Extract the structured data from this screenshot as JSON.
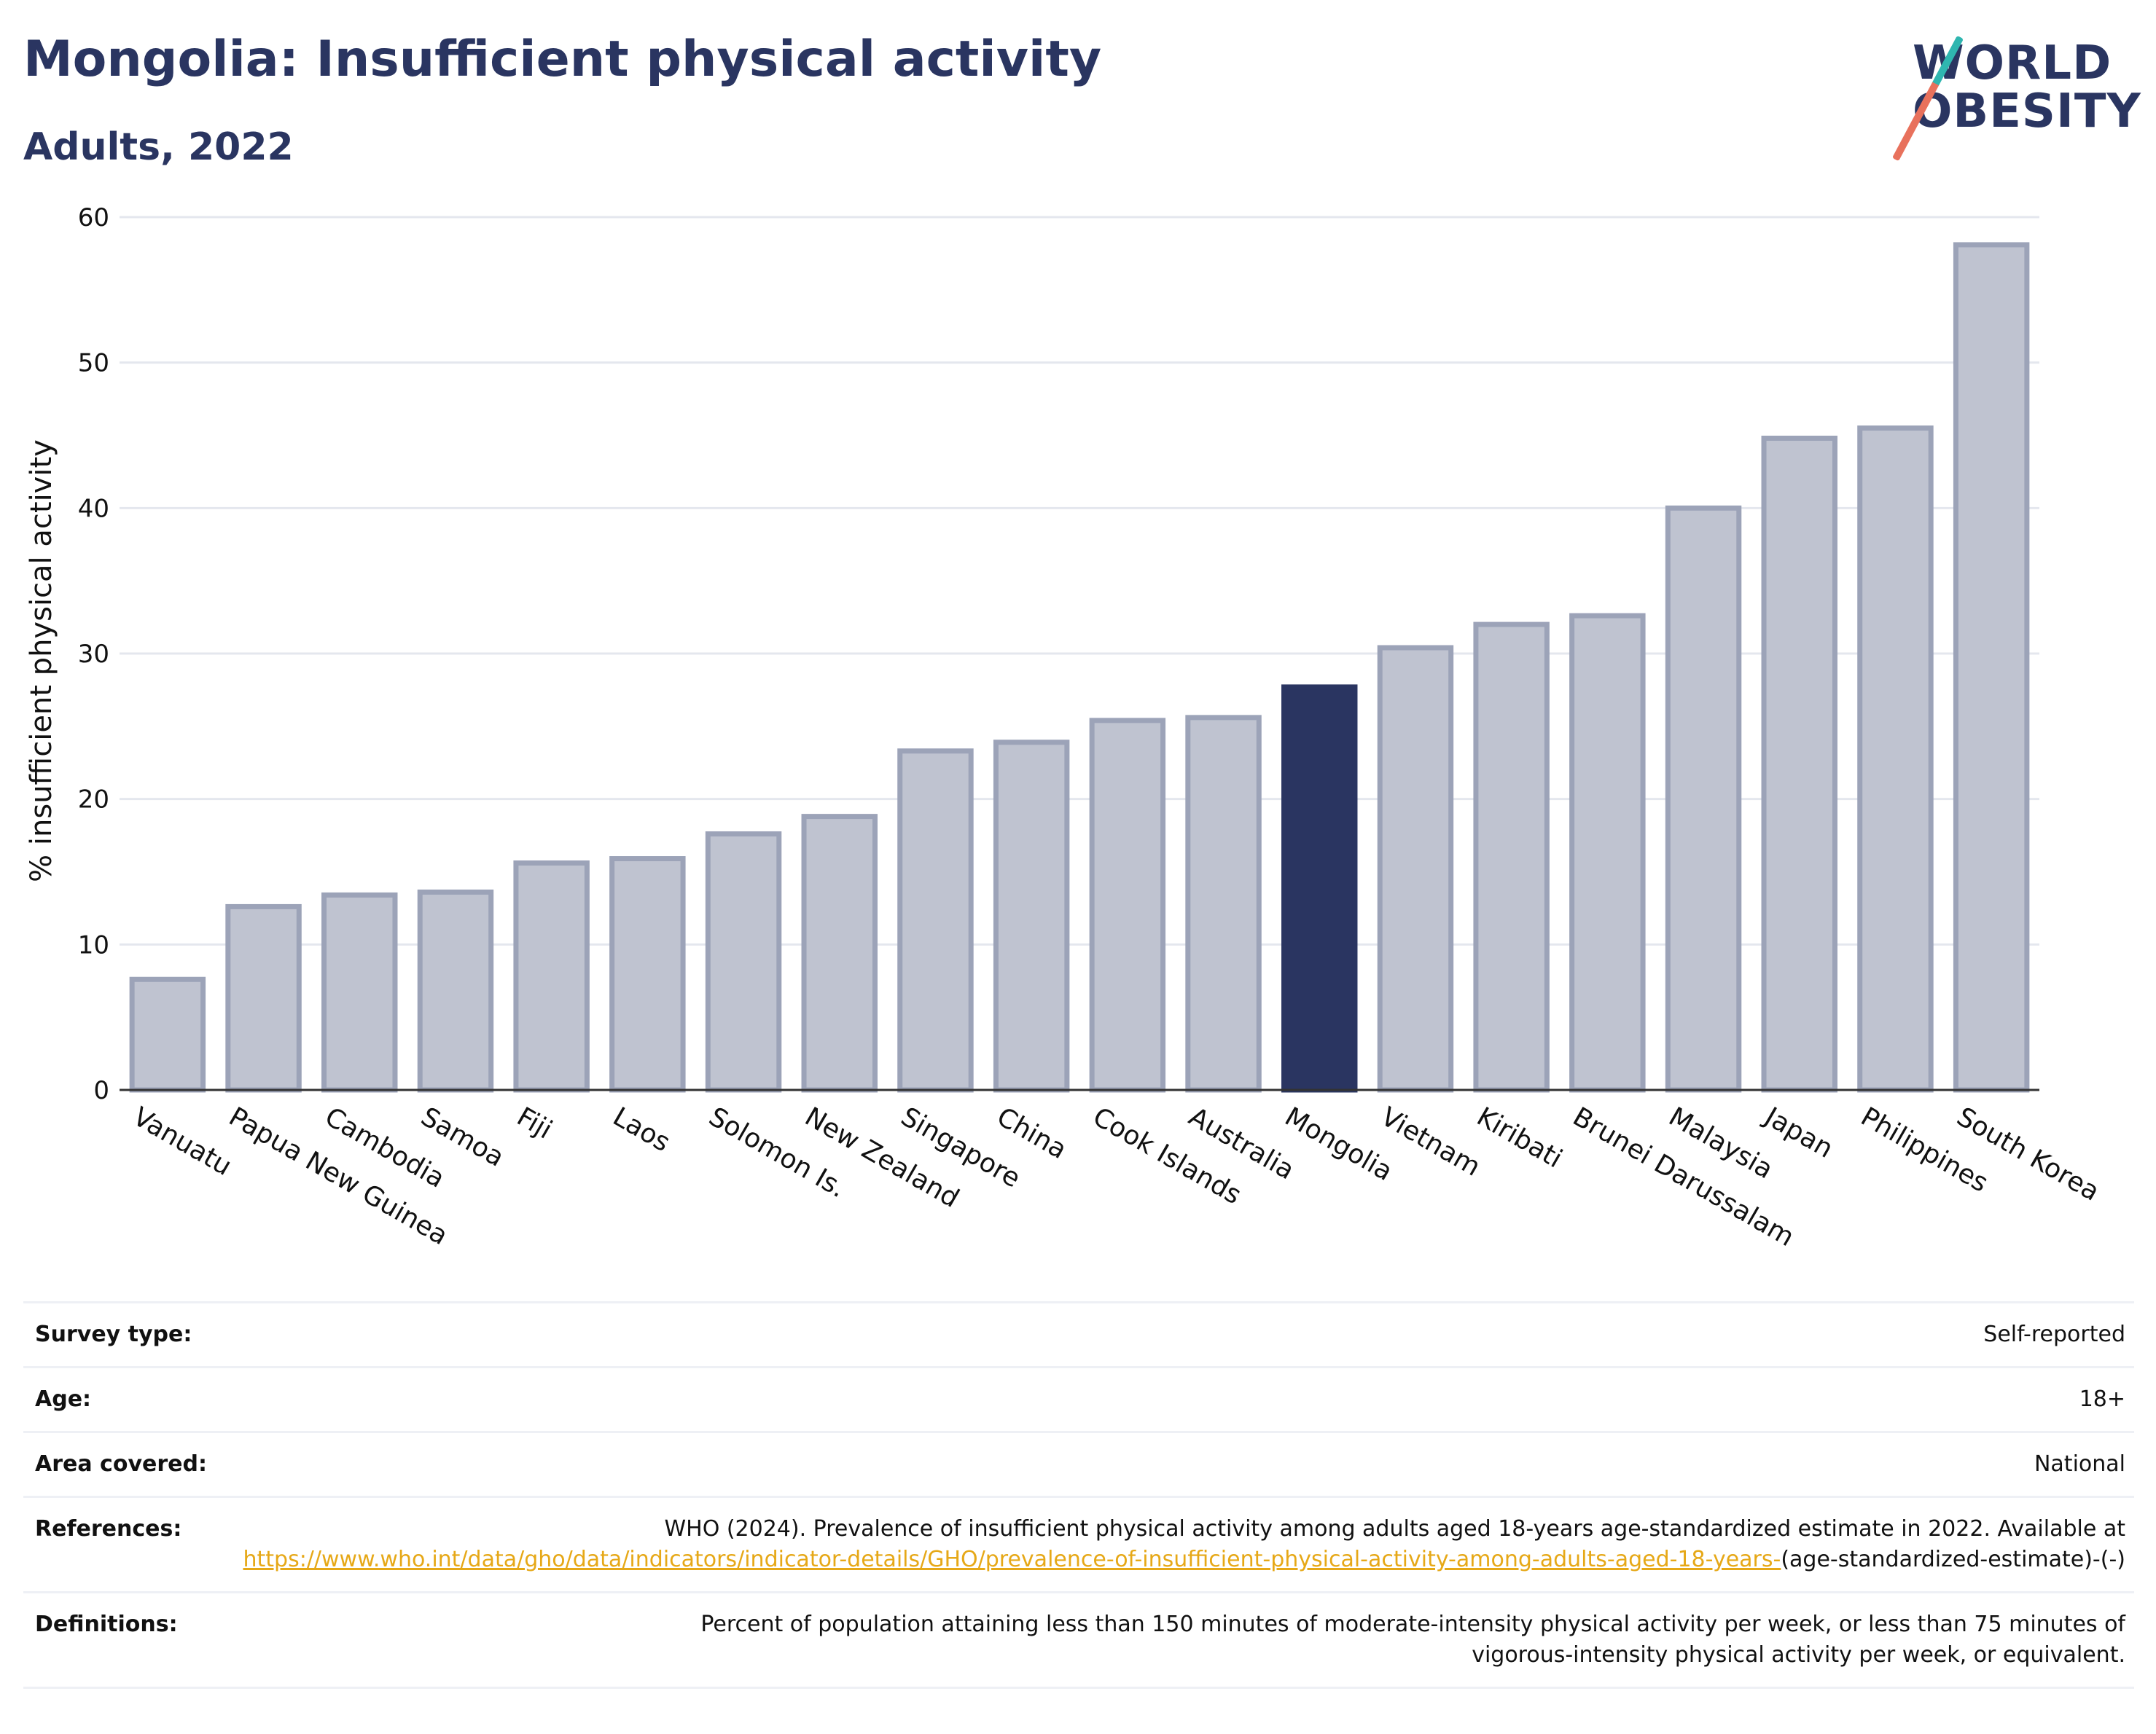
{
  "title": "Mongolia: Insufficient physical activity",
  "subtitle": "Adults, 2022",
  "logo": {
    "line1": "WORLD",
    "line2": "OBESITY"
  },
  "colors": {
    "highlight": "#2a3561",
    "bar": "#bfc3d0",
    "bar_border": "#9ca3b8",
    "link": "#e6a817"
  },
  "chart_data": {
    "type": "bar",
    "ylabel": "% insufficient physical activity",
    "ylim": [
      0,
      60
    ],
    "yticks": [
      0,
      10,
      20,
      30,
      40,
      50,
      60
    ],
    "highlight": "Mongolia",
    "categories": [
      "Vanuatu",
      "Papua New Guinea",
      "Cambodia",
      "Samoa",
      "Fiji",
      "Laos",
      "Solomon Is.",
      "New Zealand",
      "Singapore",
      "China",
      "Cook Islands",
      "Australia",
      "Mongolia",
      "Vietnam",
      "Kiribati",
      "Brunei Darussalam",
      "Malaysia",
      "Japan",
      "Philippines",
      "South Korea"
    ],
    "values": [
      7.6,
      12.6,
      13.4,
      13.6,
      15.6,
      15.9,
      17.6,
      18.8,
      23.3,
      23.9,
      25.4,
      25.6,
      27.7,
      30.4,
      32.0,
      32.6,
      40.0,
      44.8,
      45.5,
      58.1
    ],
    "grid": true,
    "legend": "none"
  },
  "info": [
    {
      "label": "Survey type:",
      "value": "Self-reported"
    },
    {
      "label": "Age:",
      "value": "18+"
    },
    {
      "label": "Area covered:",
      "value": "National"
    },
    {
      "label": "References:",
      "value_pre": "WHO (2024). Prevalence of insufficient physical activity among adults aged 18-years age-standardized estimate in 2022. Available at",
      "link": "https://www.who.int/data/gho/data/indicators/indicator-details/GHO/prevalence-of-insufficient-physical-activity-among-adults-aged-18-years-",
      "value_post": "(age-standardized-estimate)-(-)"
    },
    {
      "label": "Definitions:",
      "value": "Percent of population attaining less than 150 minutes of moderate-intensity physical activity per week, or less than 75 minutes of vigorous-intensity physical activity per week, or equivalent."
    }
  ]
}
